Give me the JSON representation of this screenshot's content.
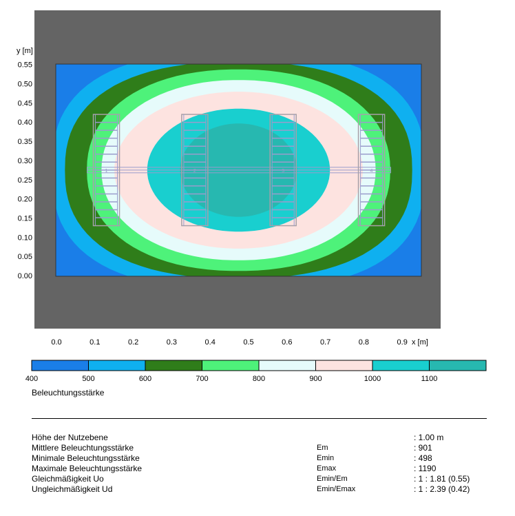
{
  "chart_data": {
    "type": "heatmap",
    "xlabel": "x [m]",
    "ylabel": "y [m]",
    "xlim": [
      0,
      0.95
    ],
    "ylim": [
      0,
      0.55
    ],
    "x_ticks": [
      "0.0",
      "0.1",
      "0.2",
      "0.3",
      "0.4",
      "0.5",
      "0.6",
      "0.7",
      "0.8",
      "0.9"
    ],
    "y_ticks": [
      "0.00",
      "0.05",
      "0.10",
      "0.15",
      "0.20",
      "0.25",
      "0.30",
      "0.35",
      "0.40",
      "0.45",
      "0.50",
      "0.55"
    ],
    "contour_levels": [
      1100,
      1000,
      900,
      800,
      700,
      600,
      500
    ],
    "legend": {
      "title": "Beleuchtungsstärke",
      "ticks": [
        "400",
        "500",
        "600",
        "700",
        "800",
        "900",
        "1000",
        "1100"
      ],
      "colors": [
        "#1a7ee8",
        "#0fb0f0",
        "#2f7d1a",
        "#4ef27a",
        "#e6fbfb",
        "#fde3e0",
        "#19cfcf",
        "#27b8b0"
      ]
    },
    "luminaires": [
      {
        "id": "1",
        "x": 0.13,
        "y_from": 0.13,
        "y_to": 0.42
      },
      {
        "id": "2",
        "x": 0.36,
        "y_from": 0.13,
        "y_to": 0.42
      },
      {
        "id": "3",
        "x": 0.59,
        "y_from": 0.13,
        "y_to": 0.42
      },
      {
        "id": "4",
        "x": 0.82,
        "y_from": 0.13,
        "y_to": 0.42
      }
    ],
    "luminaire_row": {
      "y": 0.275,
      "x_from": 0.08,
      "x_to": 0.87
    }
  },
  "colors": {
    "frame": "#646464",
    "outline": "#9a9ccc",
    "background": "#ffffff"
  },
  "results": {
    "rows": [
      {
        "label": "Höhe der Nutzebene",
        "symbol": "",
        "value": ": 1.00 m"
      },
      {
        "label": "Mittlere Beleuchtungsstärke",
        "symbol": "Em",
        "value": ": 901"
      },
      {
        "label": "Minimale Beleuchtungsstärke",
        "symbol": "Emin",
        "value": ": 498"
      },
      {
        "label": "Maximale Beleuchtungsstärke",
        "symbol": "Emax",
        "value": ": 1190"
      },
      {
        "label": "Gleichmäßigkeit Uo",
        "symbol": "Emin/Em",
        "value": ": 1 : 1.81 (0.55)"
      },
      {
        "label": "Ungleichmäßigkeit Ud",
        "symbol": "Emin/Emax",
        "value": ": 1 : 2.39 (0.42)"
      }
    ]
  }
}
